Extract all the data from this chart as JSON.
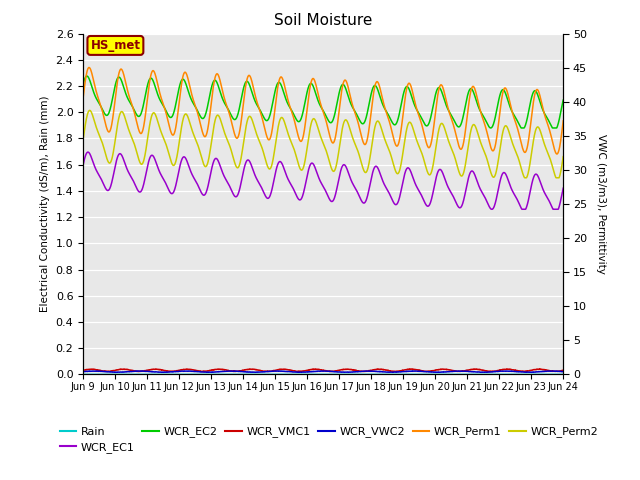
{
  "title": "Soil Moisture",
  "ylabel_left": "Electrical Conductivity (dS/m), Rain (mm)",
  "ylabel_right": "VWC (m3/m3), Permittivity",
  "ylim_left": [
    0.0,
    2.6
  ],
  "ylim_right": [
    0,
    50
  ],
  "yticks_left": [
    0.0,
    0.2,
    0.4,
    0.6,
    0.8,
    1.0,
    1.2,
    1.4,
    1.6,
    1.8,
    2.0,
    2.2,
    2.4,
    2.6
  ],
  "yticks_right": [
    0,
    5,
    10,
    15,
    20,
    25,
    30,
    35,
    40,
    45,
    50
  ],
  "fig_bg": "#ffffff",
  "plot_bg": "#e8e8e8",
  "box_label": "HS_met",
  "box_bg": "#ffff00",
  "box_border": "#8b0000",
  "legend_labels": [
    "Rain",
    "WCR_EC1",
    "WCR_EC2",
    "WCR_VMC1",
    "WCR_VWC2",
    "WCR_Perm1",
    "WCR_Perm2"
  ],
  "legend_colors": [
    "#00cccc",
    "#9900cc",
    "#00cc00",
    "#cc0000",
    "#0000cc",
    "#ff8800",
    "#cccc00"
  ],
  "x_tick_labels": [
    "Jun 9",
    "Jun 10",
    "Jun 11",
    "Jun 12",
    "Jun 13",
    "Jun 14",
    "Jun 15",
    "Jun 16",
    "Jun 17",
    "Jun 18",
    "Jun 19",
    "Jun 20",
    "Jun 21",
    "Jun 22",
    "Jun 23",
    "Jun 24"
  ],
  "grid_color": "#ffffff",
  "title_fontsize": 11,
  "n_days": 15,
  "n_points": 1500,
  "ec1": {
    "base": 1.55,
    "amp": 0.13,
    "trend": -0.012,
    "phase": 0.3,
    "clip_min": 1.26,
    "clip_max": 1.82
  },
  "ec2": {
    "base": 2.12,
    "amp": 0.135,
    "trend": -0.008,
    "phase": 0.55,
    "clip_min": 1.88,
    "clip_max": 2.35
  },
  "perm1": {
    "base": 2.1,
    "amp": 0.22,
    "trend": -0.012,
    "phase": 0.05,
    "clip_min": 1.6,
    "clip_max": 2.5
  },
  "perm2": {
    "base": 1.82,
    "amp": 0.18,
    "trend": -0.009,
    "phase": -0.1,
    "clip_min": 1.5,
    "clip_max": 2.1
  }
}
